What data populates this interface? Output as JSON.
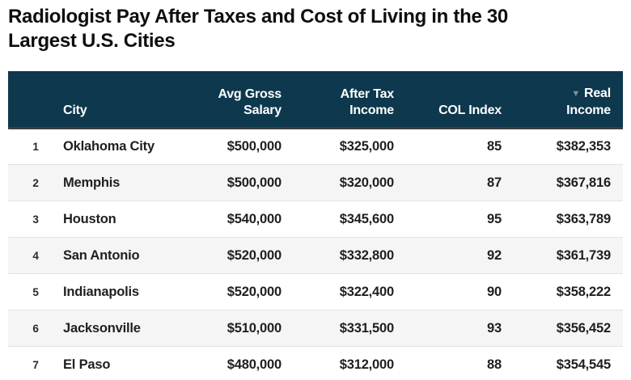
{
  "page": {
    "title": "Radiologist Pay After Taxes and Cost of Living in the 30 Largest U.S. Cities"
  },
  "colors": {
    "header_bg": "#0d384d",
    "header_text": "#ffffff",
    "sort_icon": "#7d93a1",
    "header_border_bottom": "#3d3d3d",
    "row_alt_bg": "#f5f5f5",
    "row_border": "#e3e3e3",
    "body_text": "#1f1f1f"
  },
  "table": {
    "sort_icon": "▼",
    "sorted_column": "Real Income",
    "sort_direction": "descending",
    "headers": {
      "rank": "",
      "city": "City",
      "gross_top": "Avg Gross",
      "gross_bottom": "Salary",
      "after_tax_top": "After Tax",
      "after_tax_bottom": "Income",
      "col_index": "COL Index",
      "real_top": "Real",
      "real_bottom": "Income"
    },
    "rows": [
      {
        "rank": "1",
        "city": "Oklahoma City",
        "gross": "$500,000",
        "after_tax": "$325,000",
        "col_index": "85",
        "real": "$382,353"
      },
      {
        "rank": "2",
        "city": "Memphis",
        "gross": "$500,000",
        "after_tax": "$320,000",
        "col_index": "87",
        "real": "$367,816"
      },
      {
        "rank": "3",
        "city": "Houston",
        "gross": "$540,000",
        "after_tax": "$345,600",
        "col_index": "95",
        "real": "$363,789"
      },
      {
        "rank": "4",
        "city": "San Antonio",
        "gross": "$520,000",
        "after_tax": "$332,800",
        "col_index": "92",
        "real": "$361,739"
      },
      {
        "rank": "5",
        "city": "Indianapolis",
        "gross": "$520,000",
        "after_tax": "$322,400",
        "col_index": "90",
        "real": "$358,222"
      },
      {
        "rank": "6",
        "city": "Jacksonville",
        "gross": "$510,000",
        "after_tax": "$331,500",
        "col_index": "93",
        "real": "$356,452"
      },
      {
        "rank": "7",
        "city": "El Paso",
        "gross": "$480,000",
        "after_tax": "$312,000",
        "col_index": "88",
        "real": "$354,545"
      }
    ]
  },
  "chart_data": {
    "type": "table",
    "title": "Radiologist Pay After Taxes and Cost of Living in the 30 Largest U.S. Cities",
    "columns": [
      "Rank",
      "City",
      "Avg Gross Salary",
      "After Tax Income",
      "COL Index",
      "Real Income"
    ],
    "sorted_by": "Real Income",
    "sort_direction": "descending",
    "visible_rows": 7,
    "rows": [
      [
        1,
        "Oklahoma City",
        500000,
        325000,
        85,
        382353
      ],
      [
        2,
        "Memphis",
        500000,
        320000,
        87,
        367816
      ],
      [
        3,
        "Houston",
        540000,
        345600,
        95,
        363789
      ],
      [
        4,
        "San Antonio",
        520000,
        332800,
        92,
        361739
      ],
      [
        5,
        "Indianapolis",
        520000,
        322400,
        90,
        358222
      ],
      [
        6,
        "Jacksonville",
        510000,
        331500,
        93,
        356452
      ],
      [
        7,
        "El Paso",
        480000,
        312000,
        88,
        354545
      ]
    ]
  }
}
